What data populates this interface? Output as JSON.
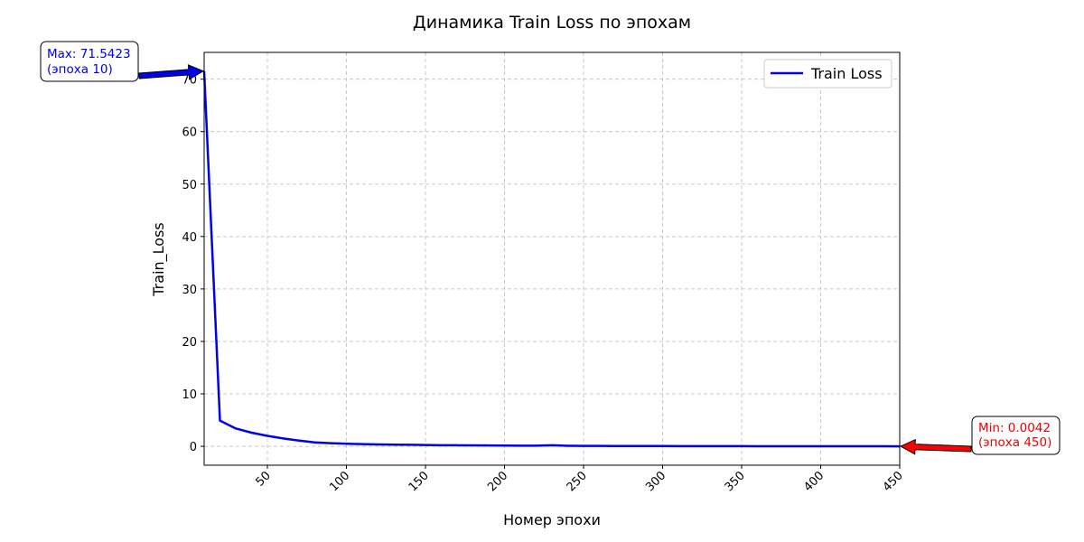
{
  "chart_data": {
    "type": "line",
    "title": "Динамика Train Loss по эпохам",
    "xlabel": "Номер эпохи",
    "ylabel": "Train_Loss",
    "xlim": [
      10,
      450
    ],
    "ylim": [
      -3.6,
      75.1
    ],
    "xticks": [
      50,
      100,
      150,
      200,
      250,
      300,
      350,
      400,
      450
    ],
    "yticks": [
      0,
      10,
      20,
      30,
      40,
      50,
      60,
      70
    ],
    "grid": true,
    "legend_position": "top-right",
    "series": [
      {
        "name": "Train Loss",
        "color": "#0000ee",
        "x": [
          10,
          20,
          30,
          40,
          50,
          60,
          70,
          80,
          90,
          100,
          110,
          120,
          130,
          140,
          150,
          160,
          170,
          180,
          190,
          200,
          210,
          220,
          230,
          240,
          250,
          260,
          270,
          280,
          290,
          300,
          310,
          320,
          330,
          340,
          350,
          360,
          370,
          380,
          390,
          400,
          410,
          420,
          430,
          440,
          450
        ],
        "y": [
          71.5423,
          4.9,
          3.4,
          2.6,
          2.0,
          1.5,
          1.1,
          0.75,
          0.6,
          0.5,
          0.42,
          0.36,
          0.32,
          0.29,
          0.25,
          0.22,
          0.2,
          0.18,
          0.16,
          0.14,
          0.13,
          0.12,
          0.2,
          0.1,
          0.09,
          0.08,
          0.07,
          0.06,
          0.055,
          0.05,
          0.045,
          0.04,
          0.035,
          0.03,
          0.028,
          0.025,
          0.022,
          0.02,
          0.018,
          0.015,
          0.012,
          0.01,
          0.008,
          0.006,
          0.0042
        ]
      }
    ],
    "annotations": [
      {
        "kind": "max",
        "line1": "Max: 71.5423",
        "line2": "(эпоха 10)",
        "x": 10,
        "y": 71.5423,
        "color": "#0000ee",
        "arrow_color": "#0000ee"
      },
      {
        "kind": "min",
        "line1": "Min: 0.0042",
        "line2": "(эпоха 450)",
        "x": 450,
        "y": 0.0042,
        "color": "#ee0000",
        "arrow_color": "#ff0000"
      }
    ]
  }
}
